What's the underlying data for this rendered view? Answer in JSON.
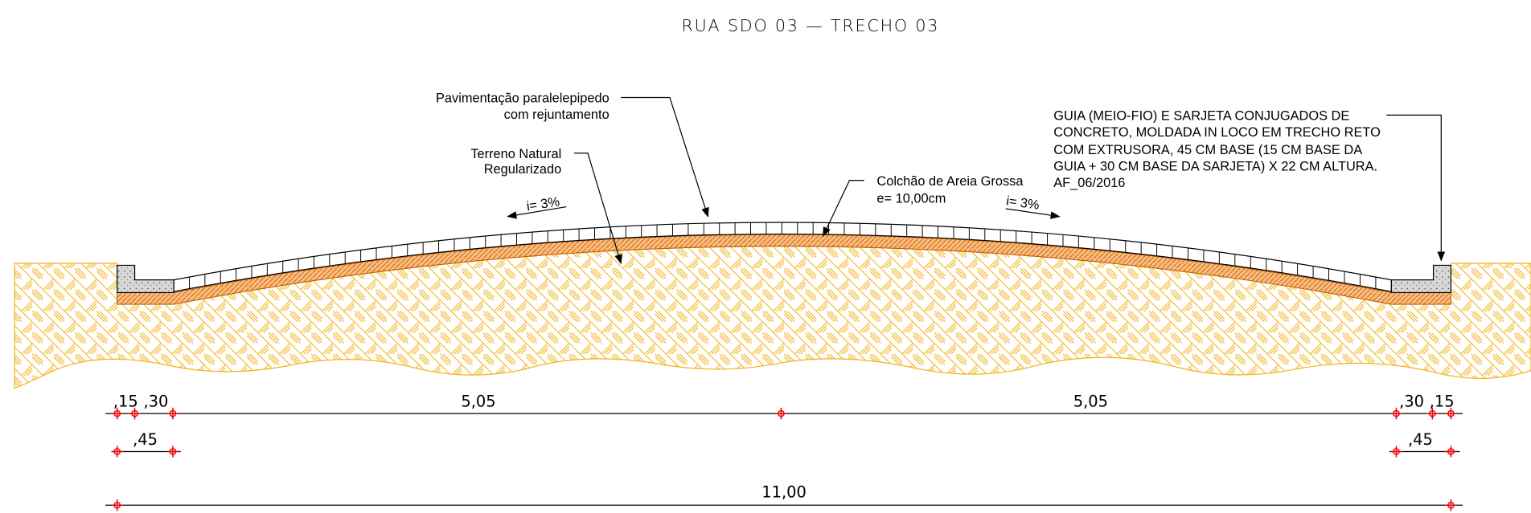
{
  "title": "RUA SDO 03 — TRECHO 03",
  "annotations": {
    "pavimentacao": [
      "Pavimentação paralelepipedo",
      "com rejuntamento"
    ],
    "terreno": [
      "Terreno Natural",
      "Regularizado"
    ],
    "colchao": [
      "Colchão de Areia Grossa",
      "e= 10,00cm"
    ],
    "guia": [
      "GUIA (MEIO-FIO) E SARJETA CONJUGADOS DE",
      "CONCRETO, MOLDADA  IN LOCO  EM TRECHO RETO",
      "COM EXTRUSORA, 45 CM BASE (15 CM BASE DA",
      "GUIA + 30 CM BASE DA SARJETA) X 22 CM ALTURA.",
      "AF_06/2016"
    ],
    "slope_left": "i= 3%",
    "slope_right": "i= 3%"
  },
  "dimensions": {
    "row1": [
      ",15",
      ",30",
      "5,05",
      "5,05",
      ",30",
      ",15"
    ],
    "row2": [
      ",45",
      ",45"
    ],
    "row3": [
      "11,00"
    ]
  }
}
